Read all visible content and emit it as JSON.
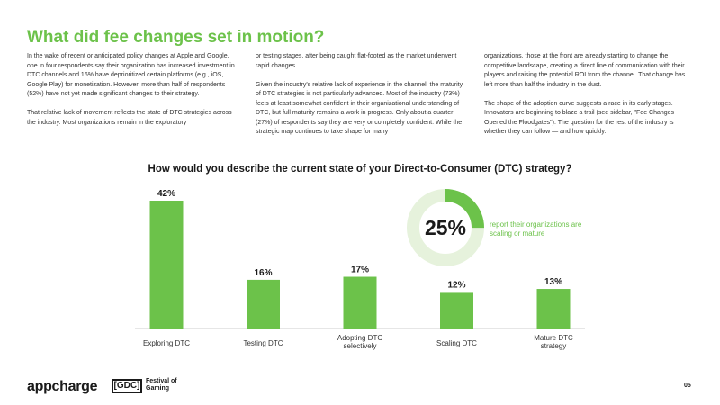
{
  "title": "What did fee changes set in motion?",
  "columns": [
    [
      "In the wake of recent or anticipated policy changes at Apple and Google, one in four respondents say their organization has increased investment in DTC channels and 16% have deprioritized certain platforms (e.g., iOS, Google Play) for monetization. However, more than half of respondents (52%) have not yet made significant changes to their strategy.",
      "That relative lack of movement reflects the state of DTC strategies across the industry. Most organizations remain in the exploratory"
    ],
    [
      "or testing stages, after being caught flat-footed as the market underwent rapid changes.",
      "Given the industry's relative lack of experience in the channel, the maturity of DTC strategies is not particularly advanced. Most of the industry (73%) feels at least somewhat confident in their organizational understanding of DTC, but full maturity remains a work in progress. Only about a quarter (27%) of respondents say they are very or completely confident. While the strategic map continues to take shape for many"
    ],
    [
      "organizations, those at the front are already starting to change the competitive landscape, creating a direct line of communication with their players and raising the potential ROI from the channel. That change has left more than half the industry in the dust.",
      "The shape of the adoption curve suggests a race in its early stages. Innovators are beginning to blaze a trail (see sidebar, \"Fee Changes Opened the Floodgates\"). The question for the rest of the industry is whether they can follow — and how quickly."
    ]
  ],
  "chart_data": {
    "type": "bar",
    "title": "How would you describe the current state of your Direct-to-Consumer (DTC) strategy?",
    "categories": [
      [
        "Exploring DTC"
      ],
      [
        "Testing DTC"
      ],
      [
        "Adopting DTC",
        "selectively"
      ],
      [
        "Scaling DTC"
      ],
      [
        "Mature DTC",
        "strategy"
      ]
    ],
    "values": [
      42,
      16,
      17,
      12,
      13
    ],
    "value_labels": [
      "42%",
      "16%",
      "17%",
      "12%",
      "13%"
    ],
    "ylim": [
      0,
      42
    ],
    "color": "#6cc24a",
    "grid": false
  },
  "donut": {
    "value": 25,
    "label": "25%",
    "caption": "report their organizations are scaling or mature",
    "color": "#6cc24a",
    "track_color": "#e6f2dc"
  },
  "footer": {
    "brand": "appcharge",
    "partner_mark": "[GDC]",
    "partner_name": "Festival of Gaming",
    "page_number": "05"
  }
}
